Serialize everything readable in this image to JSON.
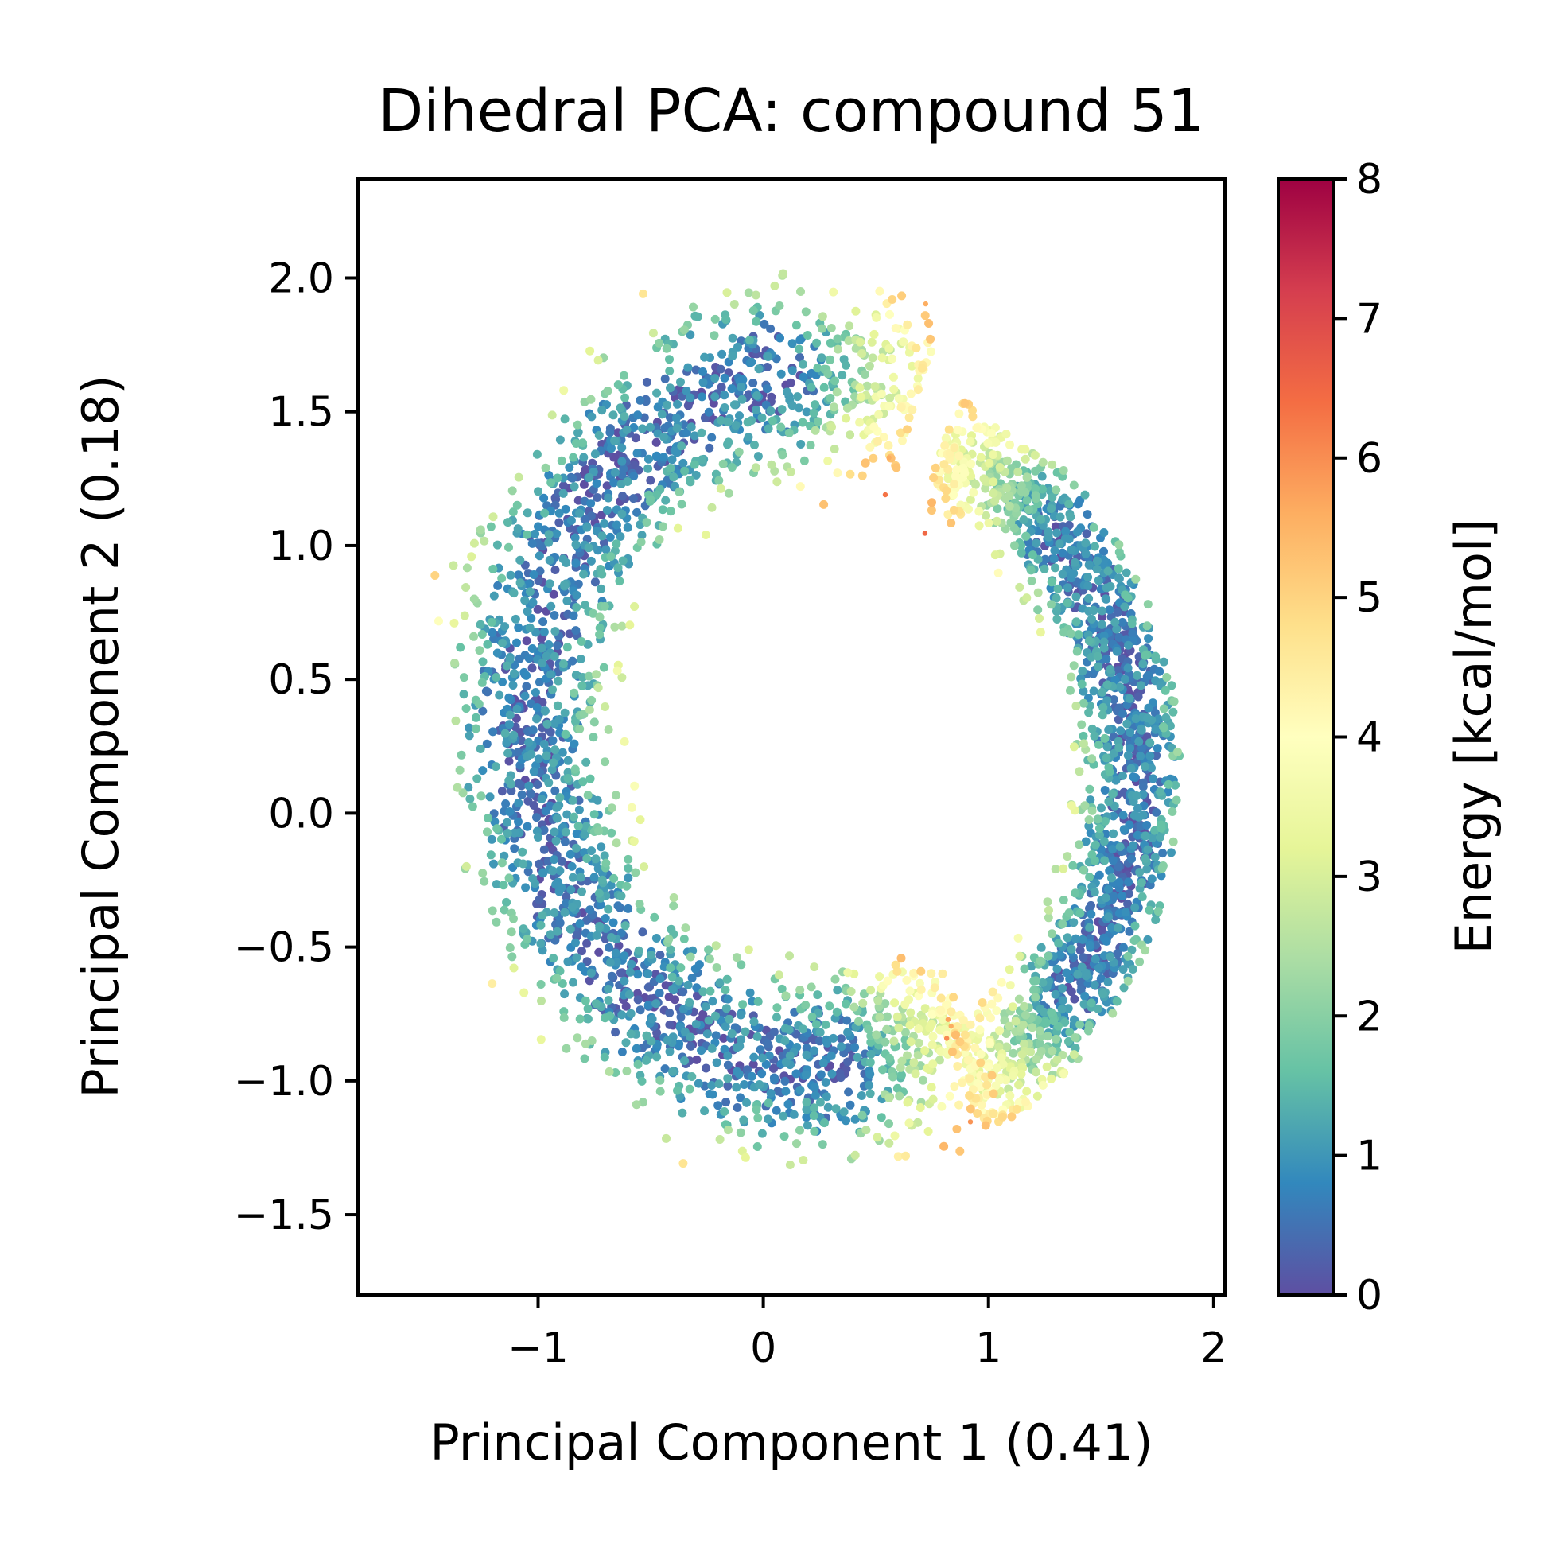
{
  "chart_data": {
    "type": "scatter",
    "title": "Dihedral PCA: compound 51",
    "xlabel": "Principal Component 1 (0.41)",
    "ylabel": "Principal Component 2 (0.18)",
    "xlim": [
      -1.8,
      2.05
    ],
    "ylim": [
      -1.8,
      2.37
    ],
    "xticks": [
      -1,
      0,
      1,
      2
    ],
    "xtick_labels": [
      "−1",
      "0",
      "1",
      "2"
    ],
    "yticks": [
      -1.5,
      -1.0,
      -0.5,
      0.0,
      0.5,
      1.0,
      1.5,
      2.0
    ],
    "ytick_labels": [
      "−1.5",
      "−1.0",
      "−0.5",
      "0.0",
      "0.5",
      "1.0",
      "1.5",
      "2.0"
    ],
    "grid": false,
    "colormap": "Spectral_r",
    "colorbar": {
      "label": "Energy [kcal/mol]",
      "range": [
        0,
        8
      ],
      "ticks": [
        0,
        1,
        2,
        3,
        4,
        5,
        6,
        7,
        8
      ],
      "tick_labels": [
        "0",
        "1",
        "2",
        "3",
        "4",
        "5",
        "6",
        "7",
        "8"
      ]
    },
    "clusters": [
      {
        "shape": "arc",
        "center": [
          0.25,
          0.35
        ],
        "radius_inner": 0.75,
        "radius_outer": 1.95,
        "core_radius": 1.3,
        "angle_range_deg": [
          70,
          300
        ],
        "core_energy_kcal_mol": 0.5,
        "edge_energy_kcal_mol": 6.5
      },
      {
        "shape": "arc",
        "center": [
          0.35,
          0.15
        ],
        "radius_inner": 0.65,
        "radius_outer": 1.5,
        "core_radius": 1.3,
        "angle_range_deg": [
          -65,
          70
        ],
        "core_energy_kcal_mol": 0.5,
        "edge_energy_kcal_mol": 6.5
      }
    ]
  }
}
